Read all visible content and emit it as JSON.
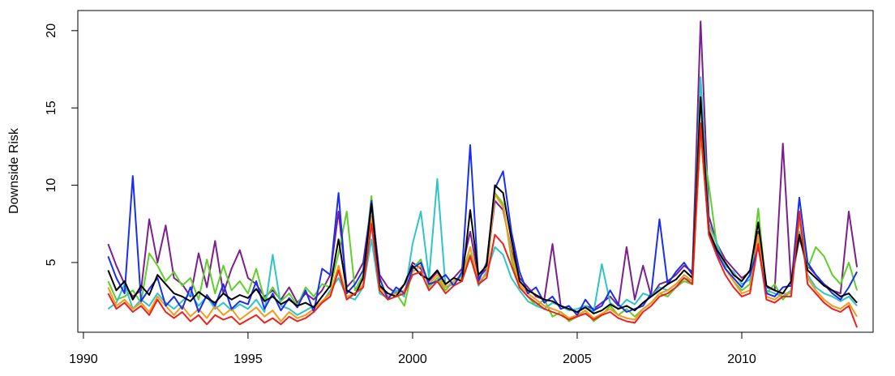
{
  "chart_data": {
    "type": "line",
    "y_label": "Downside Risk",
    "xlim": [
      1989.83,
      2013.99
    ],
    "ylim": [
      0.49,
      21.3
    ],
    "xticks": [
      1990,
      1995,
      2000,
      2005,
      2010
    ],
    "yticks": [
      5,
      10,
      15,
      20
    ],
    "x": [
      1990.75,
      1991,
      1991.25,
      1991.5,
      1991.75,
      1992,
      1992.25,
      1992.5,
      1992.75,
      1993,
      1993.25,
      1993.5,
      1993.75,
      1994,
      1994.25,
      1994.5,
      1994.75,
      1995,
      1995.25,
      1995.5,
      1995.75,
      1996,
      1996.25,
      1996.5,
      1996.75,
      1997,
      1997.25,
      1997.5,
      1997.75,
      1998,
      1998.25,
      1998.5,
      1998.75,
      1999,
      1999.25,
      1999.5,
      1999.75,
      2000,
      2000.25,
      2000.5,
      2000.75,
      2001,
      2001.25,
      2001.5,
      2001.75,
      2002,
      2002.25,
      2002.5,
      2002.75,
      2003,
      2003.25,
      2003.5,
      2003.75,
      2004,
      2004.25,
      2004.5,
      2004.75,
      2005,
      2005.25,
      2005.5,
      2005.75,
      2006,
      2006.25,
      2006.5,
      2006.75,
      2007,
      2007.25,
      2007.5,
      2007.75,
      2008,
      2008.25,
      2008.5,
      2008.75,
      2009,
      2009.25,
      2009.5,
      2009.75,
      2010,
      2010.25,
      2010.5,
      2010.75,
      2011,
      2011.25,
      2011.5,
      2011.75,
      2012,
      2012.25,
      2012.5,
      2012.75,
      2013,
      2013.25,
      2013.5
    ],
    "series": [
      {
        "color": "#7b1f8c",
        "values": [
          6.2,
          4.8,
          3.6,
          2.8,
          3.2,
          7.8,
          5.0,
          7.4,
          4.0,
          3.6,
          2.8,
          5.6,
          3.4,
          6.4,
          3.0,
          4.6,
          5.8,
          4.0,
          3.6,
          2.8,
          3.2,
          2.6,
          3.4,
          2.4,
          3.0,
          2.6,
          3.2,
          4.2,
          8.3,
          3.4,
          4.0,
          5.0,
          8.8,
          4.2,
          3.4,
          3.0,
          3.6,
          5.0,
          4.6,
          3.8,
          4.4,
          3.6,
          4.0,
          4.6,
          7.0,
          4.0,
          4.6,
          9.0,
          8.4,
          5.8,
          4.0,
          3.4,
          2.8,
          2.6,
          6.2,
          2.2,
          2.0,
          1.8,
          2.2,
          2.0,
          2.4,
          2.8,
          2.2,
          6.0,
          2.6,
          4.8,
          2.8,
          3.6,
          3.8,
          4.2,
          4.8,
          4.4,
          20.6,
          8.0,
          6.2,
          5.2,
          4.6,
          4.0,
          4.4,
          7.0,
          3.4,
          3.2,
          12.7,
          3.6,
          6.6,
          4.8,
          4.2,
          3.6,
          3.2,
          3.0,
          8.3,
          4.7
        ]
      },
      {
        "color": "#5fcf2a",
        "values": [
          3.8,
          2.6,
          2.8,
          3.2,
          2.4,
          5.6,
          4.8,
          3.8,
          4.4,
          3.5,
          4.0,
          2.6,
          5.2,
          3.0,
          4.8,
          3.2,
          3.8,
          3.0,
          4.6,
          2.6,
          3.4,
          2.5,
          3.0,
          2.2,
          3.4,
          2.8,
          3.6,
          3.4,
          5.6,
          8.3,
          3.2,
          4.2,
          9.3,
          3.6,
          2.8,
          3.0,
          2.2,
          4.6,
          5.2,
          3.4,
          4.0,
          3.2,
          3.8,
          4.2,
          5.5,
          3.6,
          4.4,
          9.5,
          8.8,
          5.2,
          3.4,
          2.8,
          2.2,
          2.6,
          1.5,
          1.8,
          1.2,
          1.5,
          1.9,
          1.2,
          1.6,
          2.2,
          1.6,
          2.0,
          1.5,
          2.0,
          2.4,
          3.0,
          2.8,
          3.4,
          3.8,
          3.6,
          13.5,
          10.0,
          6.0,
          4.6,
          3.8,
          3.2,
          3.6,
          8.5,
          3.0,
          3.6,
          2.6,
          3.2,
          8.0,
          4.6,
          6.0,
          5.4,
          4.2,
          3.6,
          5.0,
          3.2
        ]
      },
      {
        "color": "#2ec4c8",
        "values": [
          2.0,
          2.4,
          3.6,
          2.0,
          2.6,
          2.2,
          3.0,
          2.4,
          2.0,
          2.5,
          3.0,
          2.2,
          2.8,
          2.0,
          2.4,
          1.9,
          2.3,
          2.0,
          2.6,
          1.8,
          5.5,
          2.2,
          2.0,
          1.6,
          1.9,
          2.2,
          2.4,
          3.2,
          4.0,
          2.8,
          2.6,
          3.4,
          6.5,
          3.0,
          2.7,
          3.2,
          2.8,
          6.2,
          8.3,
          4.0,
          10.4,
          3.4,
          3.6,
          4.2,
          6.0,
          3.5,
          4.4,
          6.0,
          5.5,
          4.0,
          3.2,
          2.5,
          2.2,
          2.0,
          2.4,
          2.2,
          1.9,
          2.0,
          2.2,
          1.8,
          4.9,
          2.4,
          2.0,
          2.6,
          2.3,
          3.0,
          2.8,
          3.4,
          3.2,
          3.6,
          4.0,
          3.8,
          17.0,
          7.5,
          6.2,
          4.8,
          4.4,
          3.6,
          3.9,
          6.5,
          3.2,
          3.0,
          2.8,
          3.2,
          7.0,
          4.2,
          3.4,
          3.0,
          2.8,
          2.5,
          2.8,
          2.2
        ]
      },
      {
        "color": "#f59a1b",
        "values": [
          3.4,
          2.2,
          2.6,
          2.0,
          2.4,
          1.8,
          2.8,
          2.2,
          1.6,
          2.2,
          1.5,
          2.0,
          1.4,
          2.2,
          1.6,
          2.0,
          1.3,
          1.7,
          2.1,
          1.5,
          1.9,
          1.2,
          1.8,
          1.4,
          1.6,
          2.0,
          2.5,
          3.0,
          4.8,
          2.8,
          3.0,
          3.6,
          8.0,
          3.4,
          2.8,
          3.0,
          3.2,
          4.4,
          4.8,
          3.6,
          4.2,
          3.4,
          3.8,
          4.0,
          6.0,
          3.8,
          4.2,
          9.4,
          8.6,
          5.6,
          3.6,
          3.0,
          2.6,
          2.2,
          2.0,
          1.8,
          1.4,
          1.6,
          1.9,
          1.4,
          1.7,
          2.0,
          1.6,
          1.4,
          1.3,
          2.0,
          2.4,
          3.0,
          3.2,
          3.6,
          4.2,
          3.8,
          13.2,
          7.2,
          5.8,
          4.6,
          3.8,
          3.0,
          3.2,
          6.8,
          2.8,
          2.6,
          3.0,
          3.0,
          7.8,
          4.0,
          3.2,
          2.6,
          2.2,
          2.0,
          2.4,
          1.5
        ]
      },
      {
        "color": "#1a2ef0",
        "values": [
          5.4,
          4.0,
          3.0,
          10.6,
          2.5,
          3.3,
          4.0,
          2.2,
          2.8,
          2.0,
          3.4,
          1.8,
          2.9,
          2.2,
          3.6,
          2.0,
          2.5,
          2.3,
          3.8,
          2.0,
          3.0,
          1.9,
          2.7,
          2.1,
          3.2,
          1.8,
          4.6,
          4.2,
          9.5,
          3.0,
          3.6,
          4.5,
          9.0,
          4.0,
          2.6,
          3.4,
          3.0,
          4.6,
          5.0,
          3.6,
          3.8,
          4.2,
          3.5,
          4.4,
          12.6,
          3.8,
          5.0,
          9.8,
          10.9,
          7.0,
          4.4,
          3.0,
          3.4,
          2.4,
          2.8,
          2.0,
          2.2,
          1.6,
          2.6,
          1.9,
          2.2,
          3.2,
          2.3,
          1.8,
          2.0,
          2.2,
          3.0,
          7.8,
          3.6,
          4.4,
          5.0,
          4.2,
          14.0,
          6.8,
          5.6,
          4.6,
          4.0,
          3.4,
          4.2,
          6.0,
          3.0,
          2.8,
          3.4,
          3.5,
          9.2,
          5.0,
          4.2,
          3.6,
          3.0,
          2.6,
          3.4,
          4.4
        ]
      },
      {
        "color": "#000000",
        "values": [
          4.5,
          3.2,
          3.8,
          2.6,
          3.5,
          2.9,
          4.2,
          3.6,
          3.0,
          2.8,
          2.5,
          3.1,
          2.7,
          2.4,
          3.0,
          2.6,
          2.9,
          2.7,
          3.3,
          2.5,
          2.8,
          2.3,
          2.6,
          2.2,
          2.4,
          2.1,
          2.8,
          3.5,
          6.5,
          3.2,
          2.9,
          4.0,
          8.8,
          3.5,
          3.0,
          2.8,
          3.6,
          4.8,
          4.2,
          3.9,
          4.5,
          3.6,
          4.0,
          3.8,
          8.4,
          4.2,
          4.8,
          10.0,
          9.5,
          6.5,
          3.8,
          3.2,
          2.9,
          2.6,
          2.5,
          2.2,
          2.0,
          1.8,
          2.1,
          1.7,
          1.9,
          2.3,
          2.0,
          2.2,
          1.9,
          2.4,
          2.8,
          3.2,
          3.6,
          3.9,
          4.5,
          4.0,
          15.7,
          7.0,
          5.8,
          5.0,
          4.2,
          3.8,
          4.5,
          7.6,
          3.5,
          3.2,
          3.0,
          3.8,
          6.8,
          4.5,
          4.0,
          3.5,
          3.2,
          2.8,
          3.0,
          2.4
        ]
      },
      {
        "color": "#f0201c",
        "values": [
          3.0,
          2.0,
          2.4,
          1.8,
          2.2,
          1.6,
          2.6,
          1.8,
          1.4,
          1.8,
          1.2,
          1.6,
          1.0,
          1.6,
          1.3,
          1.5,
          1.0,
          1.3,
          1.6,
          1.1,
          1.4,
          1.0,
          1.5,
          1.2,
          1.4,
          1.8,
          2.4,
          2.8,
          4.5,
          2.6,
          3.0,
          3.4,
          7.5,
          3.2,
          2.6,
          2.8,
          3.0,
          4.2,
          4.4,
          3.2,
          3.8,
          3.0,
          3.5,
          3.8,
          5.4,
          3.6,
          4.0,
          6.8,
          6.2,
          4.8,
          3.4,
          2.8,
          2.4,
          2.0,
          1.8,
          1.6,
          1.3,
          1.5,
          1.7,
          1.3,
          1.6,
          1.8,
          1.4,
          1.2,
          1.1,
          1.8,
          2.2,
          2.8,
          3.0,
          3.4,
          4.0,
          3.6,
          14.0,
          6.8,
          5.4,
          4.2,
          3.4,
          2.8,
          3.0,
          6.2,
          2.6,
          2.4,
          2.8,
          2.8,
          8.3,
          3.6,
          3.0,
          2.4,
          2.0,
          1.8,
          2.2,
          0.8
        ]
      }
    ]
  }
}
